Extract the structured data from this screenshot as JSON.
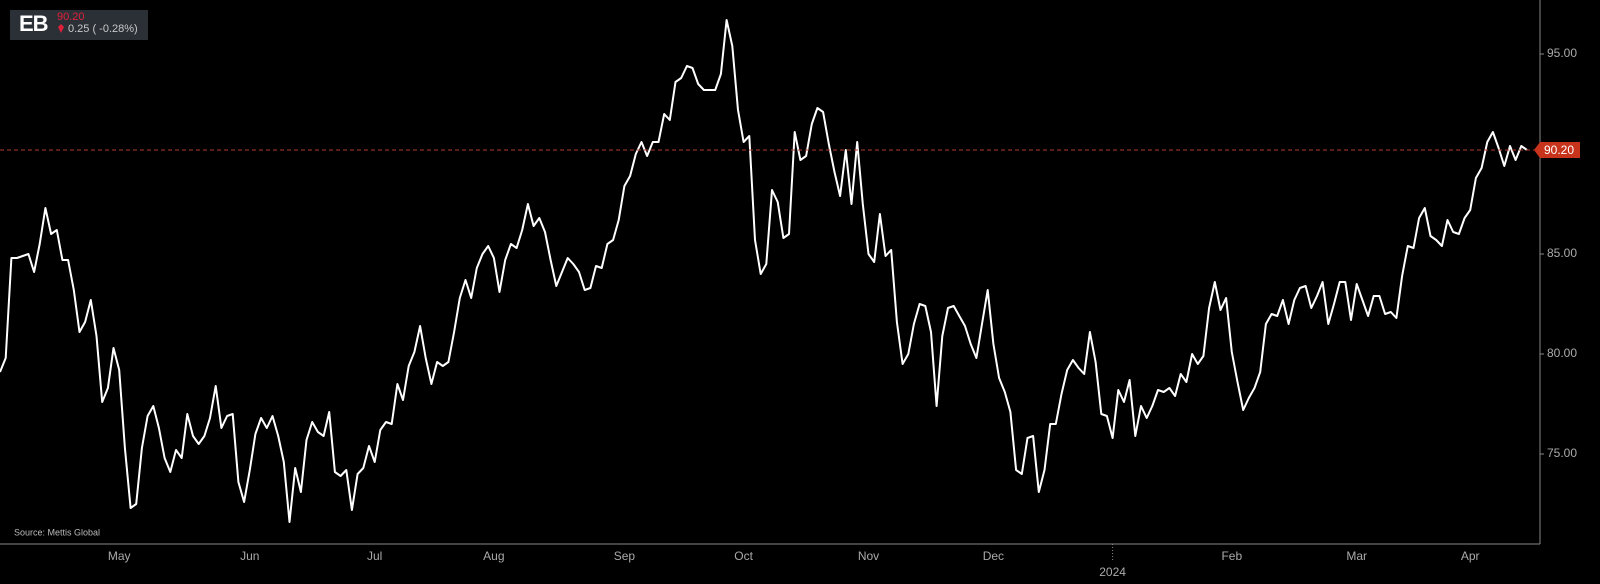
{
  "chart_data": {
    "type": "line",
    "ticker": "EB",
    "change_label": "0.25 ( -0.28%)",
    "source": "Source: Mettis Global",
    "last_value": {
      "value": 90.2,
      "label": "90.20"
    },
    "color": "#ffffff",
    "ylim": [
      70.5,
      97.7
    ],
    "yticks": [
      {
        "value": 75,
        "label": "75.00"
      },
      {
        "value": 80,
        "label": "80.00"
      },
      {
        "value": 85,
        "label": "85.00"
      },
      {
        "value": 95,
        "label": "95.00"
      }
    ],
    "categories": [
      null,
      null,
      null,
      null,
      null,
      null,
      null,
      null,
      null,
      null,
      null,
      null,
      null,
      null,
      null,
      null,
      null,
      null,
      null,
      null,
      null,
      "May",
      null,
      null,
      null,
      null,
      null,
      null,
      null,
      null,
      null,
      null,
      null,
      null,
      null,
      null,
      null,
      null,
      null,
      null,
      null,
      null,
      null,
      null,
      "Jun",
      null,
      null,
      null,
      null,
      null,
      null,
      null,
      null,
      null,
      null,
      null,
      null,
      null,
      null,
      null,
      null,
      null,
      null,
      null,
      null,
      null,
      "Jul",
      null,
      null,
      null,
      null,
      null,
      null,
      null,
      null,
      null,
      null,
      null,
      null,
      null,
      null,
      null,
      null,
      null,
      null,
      null,
      null,
      "Aug",
      null,
      null,
      null,
      null,
      null,
      null,
      null,
      null,
      null,
      null,
      null,
      null,
      null,
      null,
      null,
      null,
      null,
      null,
      null,
      null,
      null,
      null,
      "Sep",
      null,
      null,
      null,
      null,
      null,
      null,
      null,
      null,
      null,
      null,
      null,
      null,
      null,
      null,
      null,
      null,
      null,
      null,
      null,
      null,
      "Oct",
      null,
      null,
      null,
      null,
      null,
      null,
      null,
      null,
      null,
      null,
      null,
      null,
      null,
      null,
      null,
      null,
      null,
      null,
      null,
      null,
      null,
      "Nov",
      null,
      null,
      null,
      null,
      null,
      null,
      null,
      null,
      null,
      null,
      null,
      null,
      null,
      null,
      null,
      null,
      null,
      null,
      null,
      null,
      null,
      "Dec",
      null,
      null,
      null,
      null,
      null,
      null,
      null,
      null,
      null,
      null,
      null,
      null,
      null,
      null,
      null,
      null,
      null,
      null,
      null,
      null,
      "2024",
      null,
      null,
      null,
      null,
      null,
      null,
      null,
      null,
      null,
      null,
      null,
      null,
      null,
      null,
      null,
      null,
      null,
      null,
      null,
      null,
      "Feb",
      null,
      null,
      null,
      null,
      null,
      null,
      null,
      null,
      null,
      null,
      null,
      null,
      null,
      null,
      null,
      null,
      null,
      null,
      null,
      null,
      null,
      "Mar",
      null,
      null,
      null,
      null,
      null,
      null,
      null,
      null,
      null,
      null,
      null,
      null,
      null,
      null,
      null,
      null,
      null,
      null,
      null,
      "Apr",
      null,
      null,
      null,
      null,
      null,
      null,
      null,
      null,
      null,
      null
    ],
    "values": [
      79.1,
      79.8,
      84.8,
      84.8,
      84.9,
      85.0,
      84.1,
      85.5,
      87.3,
      86.0,
      86.2,
      84.7,
      84.7,
      83.2,
      81.1,
      81.6,
      82.7,
      80.9,
      77.6,
      78.3,
      80.3,
      79.2,
      75.3,
      72.3,
      72.5,
      75.3,
      76.9,
      77.4,
      76.3,
      74.8,
      74.1,
      75.2,
      74.8,
      77.0,
      75.9,
      75.5,
      75.9,
      76.8,
      78.4,
      76.3,
      76.9,
      77.0,
      73.6,
      72.6,
      74.2,
      76.0,
      76.8,
      76.3,
      76.9,
      75.9,
      74.6,
      71.6,
      74.3,
      73.1,
      75.7,
      76.6,
      76.1,
      75.9,
      77.1,
      74.1,
      73.9,
      74.2,
      72.2,
      74.0,
      74.3,
      75.4,
      74.6,
      76.2,
      76.6,
      76.5,
      78.5,
      77.7,
      79.4,
      80.1,
      81.4,
      79.8,
      78.5,
      79.6,
      79.4,
      79.6,
      81.1,
      82.8,
      83.7,
      82.8,
      84.3,
      85.0,
      85.4,
      84.8,
      83.1,
      84.7,
      85.5,
      85.3,
      86.2,
      87.5,
      86.4,
      86.8,
      86.1,
      84.7,
      83.4,
      84.1,
      84.8,
      84.5,
      84.1,
      83.2,
      83.3,
      84.4,
      84.3,
      85.5,
      85.7,
      86.7,
      88.4,
      88.9,
      90.0,
      90.6,
      89.9,
      90.6,
      90.6,
      92.0,
      91.7,
      93.6,
      93.8,
      94.4,
      94.3,
      93.5,
      93.2,
      93.2,
      93.2,
      94.0,
      96.7,
      95.4,
      92.2,
      90.6,
      90.9,
      85.7,
      84.0,
      84.5,
      88.2,
      87.6,
      85.8,
      86.0,
      91.1,
      89.7,
      89.9,
      91.5,
      92.3,
      92.1,
      90.5,
      89.1,
      87.9,
      90.2,
      87.5,
      90.6,
      87.5,
      85.0,
      84.6,
      87.0,
      84.9,
      85.2,
      81.6,
      79.5,
      80.0,
      81.5,
      82.5,
      82.4,
      81.1,
      77.4,
      80.9,
      82.3,
      82.4,
      81.9,
      81.4,
      80.5,
      79.8,
      81.5,
      83.2,
      80.5,
      78.8,
      78.1,
      77.1,
      74.2,
      74.0,
      75.8,
      75.9,
      73.1,
      74.2,
      76.5,
      76.5,
      78.0,
      79.2,
      79.7,
      79.3,
      79.0,
      81.1,
      79.6,
      77.0,
      76.9,
      75.8,
      78.2,
      77.6,
      78.7,
      75.9,
      77.4,
      76.8,
      77.4,
      78.2,
      78.1,
      78.3,
      77.9,
      79.0,
      78.6,
      80.0,
      79.5,
      79.9,
      82.3,
      83.6,
      82.2,
      82.8,
      80.1,
      78.6,
      77.2,
      77.8,
      78.3,
      79.1,
      81.5,
      82.0,
      81.9,
      82.7,
      81.5,
      82.7,
      83.3,
      83.4,
      82.3,
      82.9,
      83.6,
      81.5,
      82.5,
      83.6,
      83.6,
      81.7,
      83.5,
      82.7,
      81.9,
      82.9,
      82.9,
      82.0,
      82.1,
      81.8,
      83.9,
      85.4,
      85.3,
      86.8,
      87.3,
      85.9,
      85.7,
      85.4,
      86.7,
      86.1,
      86.0,
      86.8,
      87.2,
      88.8,
      89.3,
      90.6,
      91.1,
      90.3,
      89.4,
      90.4,
      89.7,
      90.4,
      90.2
    ]
  }
}
